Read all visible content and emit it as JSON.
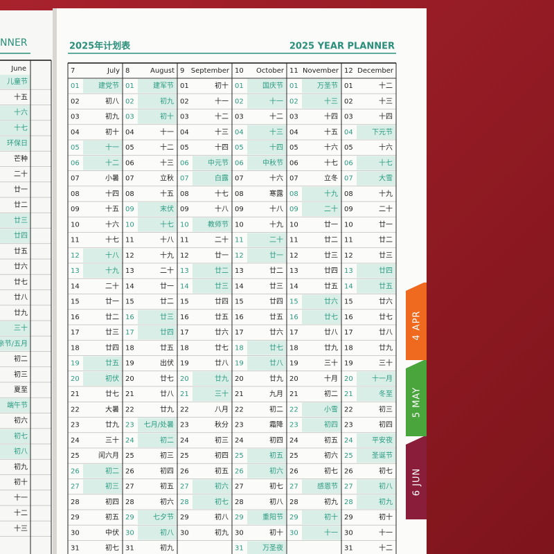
{
  "left_page": {
    "title_fragment": "NNER",
    "column": {
      "name": "June",
      "days": [
        [
          "儿童节",
          1
        ],
        [
          "十五",
          0
        ],
        [
          "十六",
          1
        ],
        [
          "十七",
          1
        ],
        [
          "环保日",
          1
        ],
        [
          "芒种",
          0
        ],
        [
          "二十",
          0
        ],
        [
          "廿一",
          0
        ],
        [
          "廿二",
          0
        ],
        [
          "廿三",
          1
        ],
        [
          "廿四",
          1
        ],
        [
          "廿五",
          0
        ],
        [
          "廿六",
          0
        ],
        [
          "廿七",
          0
        ],
        [
          "廿八",
          0
        ],
        [
          "廿九",
          0
        ],
        [
          "三十",
          1
        ],
        [
          "亲节/五月",
          1
        ],
        [
          "初二",
          0
        ],
        [
          "初三",
          0
        ],
        [
          "夏至",
          0
        ],
        [
          "端午节",
          1
        ],
        [
          "初六",
          0
        ],
        [
          "初七",
          1
        ],
        [
          "初八",
          1
        ],
        [
          "初九",
          0
        ],
        [
          "初十",
          0
        ],
        [
          "十一",
          0
        ],
        [
          "十二",
          0
        ],
        [
          "十三",
          0
        ]
      ]
    }
  },
  "header": {
    "title_cn": "2025年计划表",
    "title_en": "2025 YEAR PLANNER"
  },
  "tabs": [
    "4 APR",
    "5 MAY",
    "6 JUN"
  ],
  "table": {
    "months": [
      {
        "num": "7",
        "name": "July",
        "days": [
          [
            "01",
            "建党节",
            1
          ],
          [
            "02",
            "初八",
            0
          ],
          [
            "03",
            "初九",
            0
          ],
          [
            "04",
            "初十",
            0
          ],
          [
            "05",
            "十一",
            1
          ],
          [
            "06",
            "十二",
            1
          ],
          [
            "07",
            "小暑",
            0
          ],
          [
            "08",
            "十四",
            0
          ],
          [
            "09",
            "十五",
            0
          ],
          [
            "10",
            "十六",
            0
          ],
          [
            "11",
            "十七",
            0
          ],
          [
            "12",
            "十八",
            1
          ],
          [
            "13",
            "十九",
            1
          ],
          [
            "14",
            "二十",
            0
          ],
          [
            "15",
            "廿一",
            0
          ],
          [
            "16",
            "廿二",
            0
          ],
          [
            "17",
            "廿三",
            0
          ],
          [
            "18",
            "廿四",
            0
          ],
          [
            "19",
            "廿五",
            1
          ],
          [
            "20",
            "初伏",
            1
          ],
          [
            "21",
            "廿七",
            0
          ],
          [
            "22",
            "大暑",
            0
          ],
          [
            "23",
            "廿九",
            0
          ],
          [
            "24",
            "三十",
            0
          ],
          [
            "25",
            "闰六月",
            0
          ],
          [
            "26",
            "初二",
            1
          ],
          [
            "27",
            "初三",
            1
          ],
          [
            "28",
            "初四",
            0
          ],
          [
            "29",
            "初五",
            0
          ],
          [
            "30",
            "中伏",
            0
          ],
          [
            "31",
            "初七",
            0
          ]
        ]
      },
      {
        "num": "8",
        "name": "August",
        "days": [
          [
            "01",
            "建军节",
            1
          ],
          [
            "02",
            "初九",
            1
          ],
          [
            "03",
            "初十",
            1
          ],
          [
            "04",
            "十一",
            0
          ],
          [
            "05",
            "十二",
            0
          ],
          [
            "06",
            "十三",
            0
          ],
          [
            "07",
            "立秋",
            0
          ],
          [
            "08",
            "十五",
            0
          ],
          [
            "09",
            "末伏",
            1
          ],
          [
            "10",
            "十七",
            1
          ],
          [
            "11",
            "十八",
            0
          ],
          [
            "12",
            "十九",
            0
          ],
          [
            "13",
            "二十",
            0
          ],
          [
            "14",
            "廿一",
            0
          ],
          [
            "15",
            "廿二",
            0
          ],
          [
            "16",
            "廿三",
            1
          ],
          [
            "17",
            "廿四",
            1
          ],
          [
            "18",
            "廿五",
            0
          ],
          [
            "19",
            "出伏",
            0
          ],
          [
            "20",
            "廿七",
            0
          ],
          [
            "21",
            "廿八",
            0
          ],
          [
            "22",
            "廿九",
            0
          ],
          [
            "23",
            "七月/处暑",
            1
          ],
          [
            "24",
            "初二",
            1
          ],
          [
            "25",
            "初三",
            0
          ],
          [
            "26",
            "初四",
            0
          ],
          [
            "27",
            "初五",
            0
          ],
          [
            "28",
            "初六",
            0
          ],
          [
            "29",
            "七夕节",
            1
          ],
          [
            "30",
            "初八",
            1
          ],
          [
            "31",
            "初九",
            0
          ]
        ]
      },
      {
        "num": "9",
        "name": "September",
        "days": [
          [
            "01",
            "初十",
            0
          ],
          [
            "02",
            "十一",
            0
          ],
          [
            "03",
            "十二",
            0
          ],
          [
            "04",
            "十三",
            0
          ],
          [
            "05",
            "十四",
            0
          ],
          [
            "06",
            "中元节",
            1
          ],
          [
            "07",
            "白露",
            1
          ],
          [
            "08",
            "十七",
            0
          ],
          [
            "09",
            "十八",
            0
          ],
          [
            "10",
            "教师节",
            1
          ],
          [
            "11",
            "二十",
            0
          ],
          [
            "12",
            "廿一",
            0
          ],
          [
            "13",
            "廿二",
            1
          ],
          [
            "14",
            "廿三",
            1
          ],
          [
            "15",
            "廿四",
            0
          ],
          [
            "16",
            "廿五",
            0
          ],
          [
            "17",
            "廿六",
            0
          ],
          [
            "18",
            "廿七",
            0
          ],
          [
            "19",
            "廿八",
            0
          ],
          [
            "20",
            "廿九",
            1
          ],
          [
            "21",
            "三十",
            1
          ],
          [
            "22",
            "八月",
            0
          ],
          [
            "23",
            "秋分",
            0
          ],
          [
            "24",
            "初三",
            0
          ],
          [
            "25",
            "初四",
            0
          ],
          [
            "26",
            "初五",
            0
          ],
          [
            "27",
            "初六",
            1
          ],
          [
            "28",
            "初七",
            1
          ],
          [
            "29",
            "初八",
            0
          ],
          [
            "30",
            "初九",
            0
          ]
        ]
      },
      {
        "num": "10",
        "name": "October",
        "days": [
          [
            "01",
            "国庆节",
            1
          ],
          [
            "02",
            "十一",
            1
          ],
          [
            "03",
            "十二",
            0
          ],
          [
            "04",
            "十三",
            1
          ],
          [
            "05",
            "十四",
            1
          ],
          [
            "06",
            "中秋节",
            1
          ],
          [
            "07",
            "十六",
            0
          ],
          [
            "08",
            "寒露",
            0
          ],
          [
            "09",
            "十八",
            0
          ],
          [
            "10",
            "十九",
            0
          ],
          [
            "11",
            "二十",
            1
          ],
          [
            "12",
            "廿一",
            1
          ],
          [
            "13",
            "廿二",
            0
          ],
          [
            "14",
            "廿三",
            0
          ],
          [
            "15",
            "廿四",
            0
          ],
          [
            "16",
            "廿五",
            0
          ],
          [
            "17",
            "廿六",
            0
          ],
          [
            "18",
            "廿七",
            1
          ],
          [
            "19",
            "廿八",
            1
          ],
          [
            "20",
            "廿九",
            0
          ],
          [
            "21",
            "九月",
            0
          ],
          [
            "22",
            "初二",
            0
          ],
          [
            "23",
            "霜降",
            0
          ],
          [
            "24",
            "初四",
            0
          ],
          [
            "25",
            "初五",
            1
          ],
          [
            "26",
            "初六",
            1
          ],
          [
            "27",
            "初七",
            0
          ],
          [
            "28",
            "初八",
            0
          ],
          [
            "29",
            "重阳节",
            1
          ],
          [
            "30",
            "初十",
            0
          ],
          [
            "31",
            "万圣夜",
            1
          ]
        ]
      },
      {
        "num": "11",
        "name": "November",
        "days": [
          [
            "01",
            "万圣节",
            1
          ],
          [
            "02",
            "十三",
            1
          ],
          [
            "03",
            "十四",
            0
          ],
          [
            "04",
            "十五",
            0
          ],
          [
            "05",
            "十六",
            0
          ],
          [
            "06",
            "十七",
            0
          ],
          [
            "07",
            "立冬",
            0
          ],
          [
            "08",
            "十九",
            1
          ],
          [
            "09",
            "二十",
            1
          ],
          [
            "10",
            "廿一",
            0
          ],
          [
            "11",
            "廿二",
            0
          ],
          [
            "12",
            "廿三",
            0
          ],
          [
            "13",
            "廿四",
            0
          ],
          [
            "14",
            "廿五",
            0
          ],
          [
            "15",
            "廿六",
            1
          ],
          [
            "16",
            "廿七",
            1
          ],
          [
            "17",
            "廿八",
            0
          ],
          [
            "18",
            "廿九",
            0
          ],
          [
            "19",
            "三十",
            0
          ],
          [
            "20",
            "十月",
            0
          ],
          [
            "21",
            "初二",
            0
          ],
          [
            "22",
            "小雪",
            1
          ],
          [
            "23",
            "初四",
            1
          ],
          [
            "24",
            "初五",
            0
          ],
          [
            "25",
            "初六",
            0
          ],
          [
            "26",
            "初七",
            0
          ],
          [
            "27",
            "感恩节",
            1
          ],
          [
            "28",
            "初九",
            0
          ],
          [
            "29",
            "初十",
            1
          ],
          [
            "30",
            "十一",
            1
          ]
        ]
      },
      {
        "num": "12",
        "name": "December",
        "days": [
          [
            "01",
            "十二",
            0
          ],
          [
            "02",
            "十三",
            0
          ],
          [
            "03",
            "十四",
            0
          ],
          [
            "04",
            "下元节",
            1
          ],
          [
            "05",
            "十六",
            0
          ],
          [
            "06",
            "十七",
            1
          ],
          [
            "07",
            "大雪",
            1
          ],
          [
            "08",
            "十九",
            0
          ],
          [
            "09",
            "二十",
            0
          ],
          [
            "10",
            "廿一",
            0
          ],
          [
            "11",
            "廿二",
            0
          ],
          [
            "12",
            "廿三",
            0
          ],
          [
            "13",
            "廿四",
            1
          ],
          [
            "14",
            "廿五",
            1
          ],
          [
            "15",
            "廿六",
            0
          ],
          [
            "16",
            "廿七",
            0
          ],
          [
            "17",
            "廿八",
            0
          ],
          [
            "18",
            "廿九",
            0
          ],
          [
            "19",
            "三十",
            0
          ],
          [
            "20",
            "十一月",
            1
          ],
          [
            "21",
            "冬至",
            1
          ],
          [
            "22",
            "初三",
            0
          ],
          [
            "23",
            "初四",
            0
          ],
          [
            "24",
            "平安夜",
            1
          ],
          [
            "25",
            "圣诞节",
            1
          ],
          [
            "26",
            "初七",
            0
          ],
          [
            "27",
            "初八",
            1
          ],
          [
            "28",
            "初九",
            1
          ],
          [
            "29",
            "初十",
            0
          ],
          [
            "30",
            "十一",
            0
          ],
          [
            "31",
            "十二",
            0
          ]
        ]
      }
    ]
  }
}
